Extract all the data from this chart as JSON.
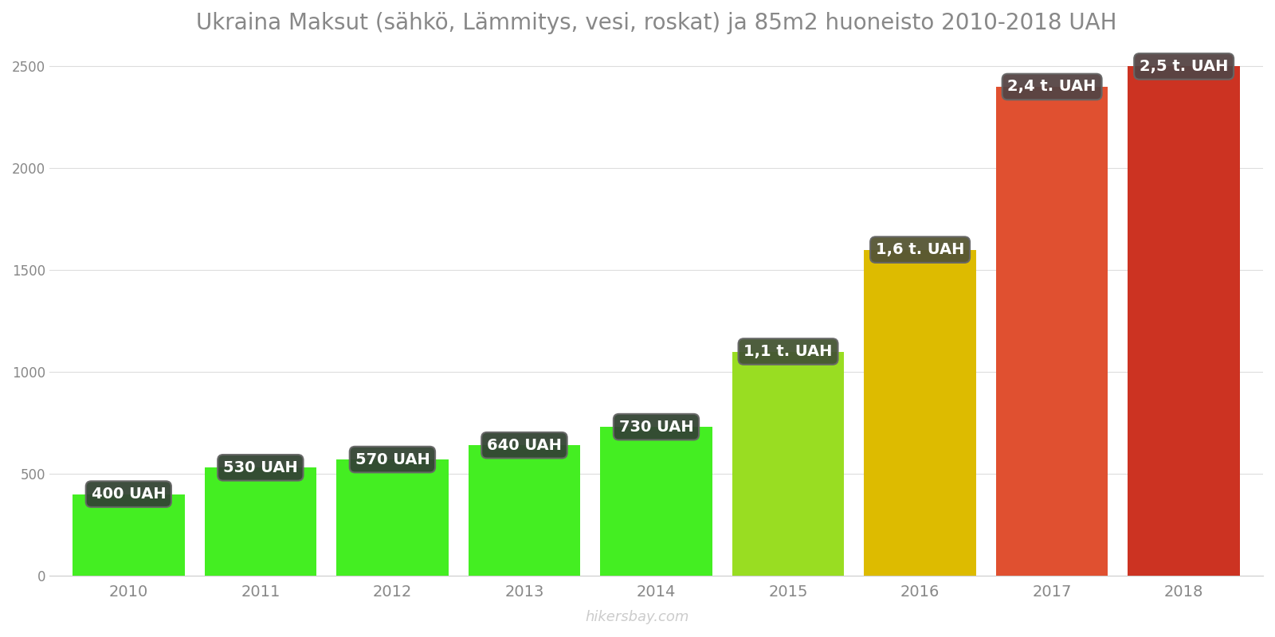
{
  "years": [
    2010,
    2011,
    2012,
    2013,
    2014,
    2015,
    2016,
    2017,
    2018
  ],
  "values": [
    400,
    530,
    570,
    640,
    730,
    1100,
    1600,
    2400,
    2500
  ],
  "labels": [
    "400 UAH",
    "530 UAH",
    "570 UAH",
    "640 UAH",
    "730 UAH",
    "1,1 t. UAH",
    "1,6 t. UAH",
    "2,4 t. UAH",
    "2,5 t. UAH"
  ],
  "bar_colors": [
    "#44ee22",
    "#44ee22",
    "#44ee22",
    "#44ee22",
    "#44ee22",
    "#99dd22",
    "#ddbb00",
    "#e05030",
    "#cc3322"
  ],
  "label_bg_colors": [
    "#334433",
    "#334433",
    "#334433",
    "#334433",
    "#334433",
    "#445533",
    "#555533",
    "#554444",
    "#554444"
  ],
  "title": "Ukraina Maksut (sähkö, Lämmitys, vesi, roskat) ja 85m2 huoneisto 2010-2018 UAH",
  "title_color": "#888888",
  "title_fontsize": 20,
  "ylim": [
    0,
    2600
  ],
  "background_color": "#ffffff",
  "watermark": "hikersbay.com",
  "bar_width": 0.85
}
